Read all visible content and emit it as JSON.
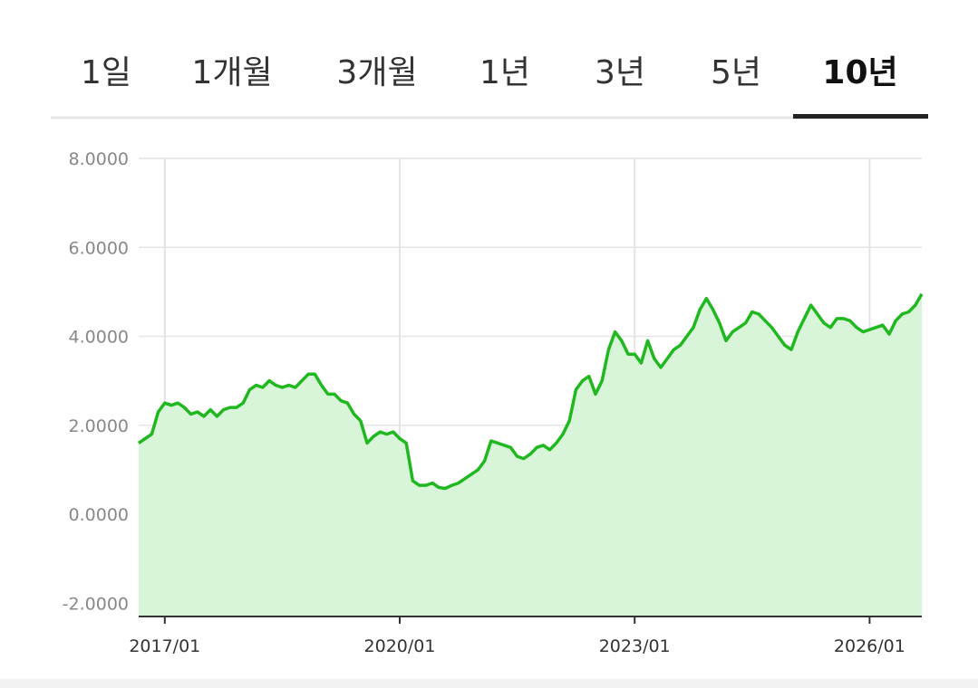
{
  "tabs": [
    "1일",
    "1개월",
    "3개월",
    "1년",
    "3년",
    "5년",
    "10년"
  ],
  "active_tab": 6,
  "chart_data": {
    "type": "area",
    "color": "#1fb81f",
    "fill_color": "#d9f5d9",
    "grid": true,
    "xlim": [
      "2016/09",
      "2026/09"
    ],
    "xticks": [
      "2017/01",
      "2020/01",
      "2023/01",
      "2026/01"
    ],
    "ylim": [
      -2.3,
      8
    ],
    "yticks": [
      {
        "value": -2,
        "label": "-2.0000"
      },
      {
        "value": 0,
        "label": "0.0000"
      },
      {
        "value": 2,
        "label": "2.0000"
      },
      {
        "value": 4,
        "label": "4.0000"
      },
      {
        "value": 6,
        "label": "6.0000"
      },
      {
        "value": 8,
        "label": "8.0000"
      }
    ],
    "x": [
      "2016/09",
      "2016/10",
      "2016/11",
      "2016/12",
      "2017/01",
      "2017/02",
      "2017/03",
      "2017/04",
      "2017/05",
      "2017/06",
      "2017/07",
      "2017/08",
      "2017/09",
      "2017/10",
      "2017/11",
      "2017/12",
      "2018/01",
      "2018/02",
      "2018/03",
      "2018/04",
      "2018/05",
      "2018/06",
      "2018/07",
      "2018/08",
      "2018/09",
      "2018/10",
      "2018/11",
      "2018/12",
      "2019/01",
      "2019/02",
      "2019/03",
      "2019/04",
      "2019/05",
      "2019/06",
      "2019/07",
      "2019/08",
      "2019/09",
      "2019/10",
      "2019/11",
      "2019/12",
      "2020/01",
      "2020/02",
      "2020/03",
      "2020/04",
      "2020/05",
      "2020/06",
      "2020/07",
      "2020/08",
      "2020/09",
      "2020/10",
      "2020/11",
      "2020/12",
      "2021/01",
      "2021/02",
      "2021/03",
      "2021/04",
      "2021/05",
      "2021/06",
      "2021/07",
      "2021/08",
      "2021/09",
      "2021/10",
      "2021/11",
      "2021/12",
      "2022/01",
      "2022/02",
      "2022/03",
      "2022/04",
      "2022/05",
      "2022/06",
      "2022/07",
      "2022/08",
      "2022/09",
      "2022/10",
      "2022/11",
      "2022/12",
      "2023/01",
      "2023/02",
      "2023/03",
      "2023/04",
      "2023/05",
      "2023/06",
      "2023/07",
      "2023/08",
      "2023/09",
      "2023/10",
      "2023/11",
      "2023/12",
      "2024/01",
      "2024/02",
      "2024/03",
      "2024/04",
      "2024/05",
      "2024/06",
      "2024/07",
      "2024/08",
      "2024/09",
      "2024/10",
      "2024/11",
      "2024/12",
      "2025/01",
      "2025/02",
      "2025/03",
      "2025/04",
      "2025/05",
      "2025/06",
      "2025/07",
      "2025/08",
      "2025/09",
      "2025/10",
      "2025/11",
      "2025/12",
      "2026/01",
      "2026/02",
      "2026/03",
      "2026/04",
      "2026/05",
      "2026/06",
      "2026/07",
      "2026/08",
      "2026/09"
    ],
    "values": [
      1.6,
      1.7,
      1.8,
      2.3,
      2.5,
      2.45,
      2.5,
      2.4,
      2.25,
      2.3,
      2.2,
      2.35,
      2.2,
      2.35,
      2.4,
      2.4,
      2.5,
      2.8,
      2.9,
      2.85,
      3.0,
      2.9,
      2.85,
      2.9,
      2.85,
      3.0,
      3.15,
      3.15,
      2.9,
      2.7,
      2.7,
      2.55,
      2.5,
      2.25,
      2.1,
      1.6,
      1.75,
      1.85,
      1.8,
      1.85,
      1.7,
      1.6,
      0.75,
      0.65,
      0.65,
      0.7,
      0.6,
      0.58,
      0.65,
      0.7,
      0.8,
      0.9,
      1.0,
      1.2,
      1.65,
      1.6,
      1.55,
      1.5,
      1.3,
      1.25,
      1.35,
      1.5,
      1.55,
      1.45,
      1.6,
      1.8,
      2.1,
      2.8,
      3.0,
      3.1,
      2.7,
      3.0,
      3.7,
      4.1,
      3.9,
      3.6,
      3.6,
      3.4,
      3.9,
      3.5,
      3.3,
      3.5,
      3.7,
      3.8,
      4.0,
      4.2,
      4.6,
      4.85,
      4.6,
      4.3,
      3.9,
      4.1,
      4.2,
      4.3,
      4.55,
      4.5,
      4.35,
      4.2,
      4.0,
      3.8,
      3.7,
      4.1,
      4.4,
      4.7,
      4.5,
      4.3,
      4.2,
      4.4,
      4.4,
      4.35,
      4.2,
      4.1,
      4.15,
      4.2,
      4.25,
      4.05,
      4.35,
      4.5,
      4.55,
      4.7,
      4.95
    ]
  }
}
